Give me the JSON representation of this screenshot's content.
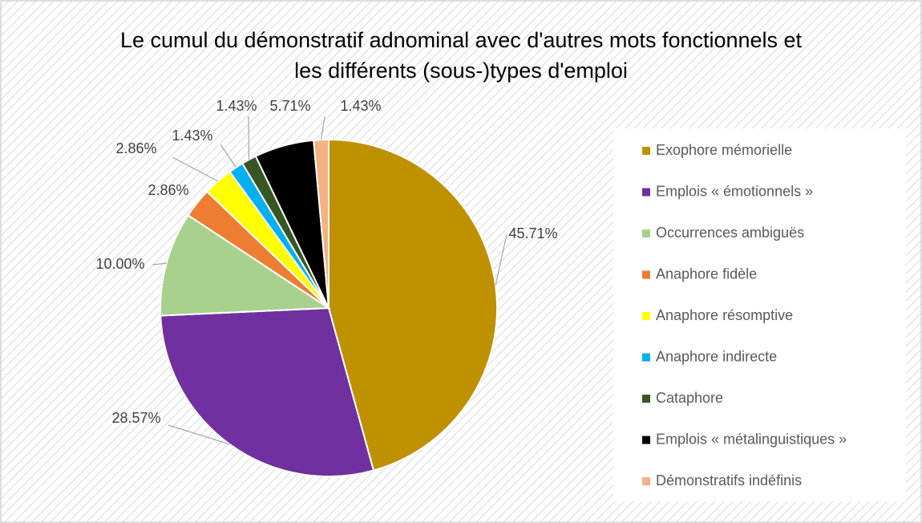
{
  "chart_data": {
    "type": "pie",
    "title": [
      "Le cumul du démonstratif adnominal avec d'autres mots fonctionnels et",
      "les différents (sous-)types d'emploi"
    ],
    "categories": [
      "Exophore mémorielle",
      "Emplois « émotionnels »",
      "Occurrences ambiguës",
      "Anaphore fidèle",
      "Anaphore résomptive",
      "Anaphore indirecte",
      "Cataphore",
      "Emplois « métalinguistiques »",
      "Démonstratifs indéfinis"
    ],
    "values": [
      45.71,
      28.57,
      10.0,
      2.86,
      2.86,
      1.43,
      1.43,
      5.71,
      1.43
    ],
    "value_labels": [
      "45.71%",
      "28.57%",
      "10.00%",
      "2.86%",
      "2.86%",
      "1.43%",
      "1.43%",
      "5.71%",
      "1.43%"
    ],
    "colors": [
      "#bf9000",
      "#7030a0",
      "#a9d18e",
      "#ed7d31",
      "#ffff00",
      "#00b0f0",
      "#375623",
      "#000000",
      "#f4b183"
    ],
    "legend": "right"
  }
}
